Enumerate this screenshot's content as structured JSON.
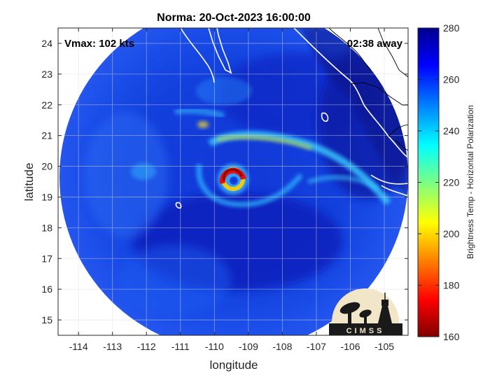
{
  "title": "Norma: 20-Oct-2023 16:00:00",
  "vmax_text": "Vmax: 102 kts",
  "time_away_text": "02:38 away",
  "xlabel": "longitude",
  "ylabel": "latitude",
  "xticks": [
    "-114",
    "-113",
    "-112",
    "-111",
    "-110",
    "-109",
    "-108",
    "-107",
    "-106",
    "-105"
  ],
  "yticks": [
    "24",
    "23",
    "22",
    "21",
    "20",
    "19",
    "18",
    "17",
    "16",
    "15"
  ],
  "colorbar": {
    "label": "Brightness Temp - Horizontal Polarization",
    "ticks": [
      "280",
      "260",
      "240",
      "220",
      "200",
      "180",
      "160"
    ],
    "range": [
      160,
      280
    ]
  },
  "logo_text": "CIMSS",
  "map": {
    "lon_range": [
      -114.6,
      -104.3
    ],
    "lat_range": [
      14.5,
      24.5
    ],
    "storm_center": {
      "lon": -109.55,
      "lat": 19.65
    },
    "grid": true
  }
}
